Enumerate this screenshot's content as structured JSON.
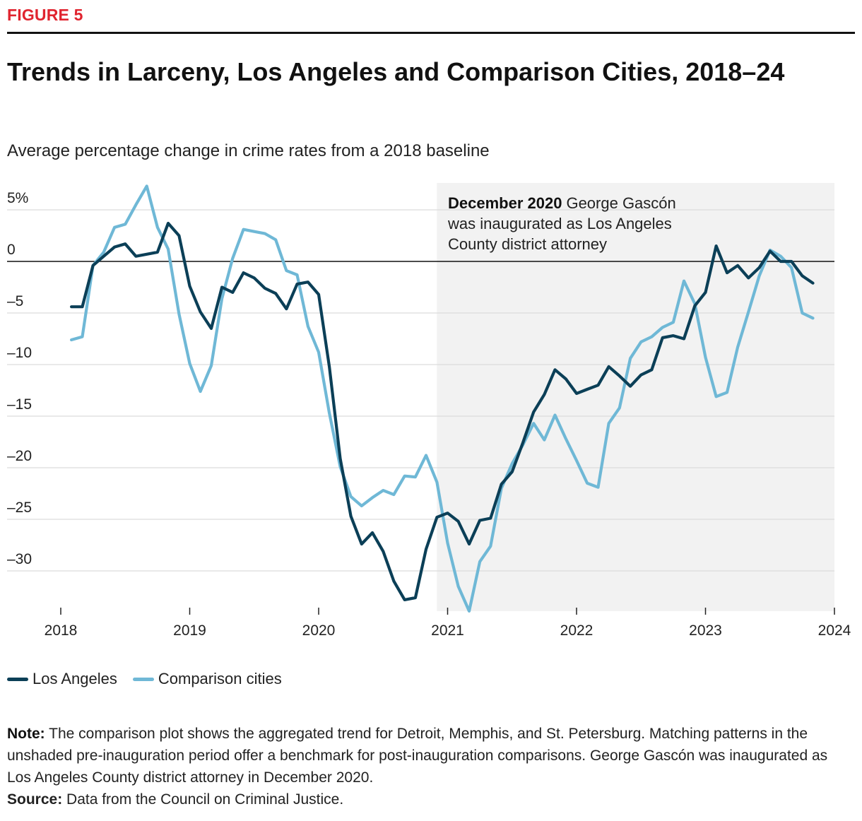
{
  "figure_label": "FIGURE 5",
  "title": "Trends in Larceny, Los Angeles and Comparison Cities, 2018–24",
  "subtitle": "Average percentage change in crime rates from a 2018 baseline",
  "colors": {
    "los_angeles": "#0b3f57",
    "comparison": "#6fb8d6",
    "shade": "#f2f2f2",
    "accent": "#e0242f"
  },
  "legend": [
    "Los Angeles",
    "Comparison cities"
  ],
  "annotation": {
    "bold": "December 2020",
    "lines": [
      "George Gascón",
      "was inaugurated as Los Angeles",
      "County district attorney"
    ]
  },
  "note": {
    "label": "Note:",
    "text": "The comparison plot shows the aggregated trend for Detroit, Memphis, and St. Petersburg. Matching patterns in the unshaded pre-inauguration period offer a benchmark for post-inauguration comparisons. George Gascón was inaugurated as Los Angeles County district attorney in December 2020."
  },
  "source": {
    "label": "Source:",
    "text": "Data from the Council on Criminal Justice."
  },
  "chart_data": {
    "type": "line",
    "title": "Trends in Larceny, Los Angeles and Comparison Cities, 2018–24",
    "ylabel": "Average percentage change in crime rates from a 2018 baseline",
    "xlabel": "",
    "xlim": [
      2018,
      2024
    ],
    "ylim": [
      -33.5,
      7.5
    ],
    "x_ticks": [
      2018,
      2019,
      2020,
      2021,
      2022,
      2023,
      2024
    ],
    "y_ticks": [
      5,
      0,
      -5,
      -10,
      -15,
      -20,
      -25,
      -30
    ],
    "y_tick_labels": [
      "5%",
      "0",
      "–5",
      "–10",
      "–15",
      "–20",
      "–25",
      "–30"
    ],
    "grid": "horizontal",
    "legend_position": "bottom-left",
    "shaded_region": {
      "from": 2020.917,
      "to": 2024
    },
    "x": [
      2018.083,
      2018.167,
      2018.25,
      2018.333,
      2018.417,
      2018.5,
      2018.583,
      2018.667,
      2018.75,
      2018.833,
      2018.917,
      2019.0,
      2019.083,
      2019.167,
      2019.25,
      2019.333,
      2019.417,
      2019.5,
      2019.583,
      2019.667,
      2019.75,
      2019.833,
      2019.917,
      2020.0,
      2020.083,
      2020.167,
      2020.25,
      2020.333,
      2020.417,
      2020.5,
      2020.583,
      2020.667,
      2020.75,
      2020.833,
      2020.917,
      2021.0,
      2021.083,
      2021.167,
      2021.25,
      2021.333,
      2021.417,
      2021.5,
      2021.583,
      2021.667,
      2021.75,
      2021.833,
      2021.917,
      2022.0,
      2022.083,
      2022.167,
      2022.25,
      2022.333,
      2022.417,
      2022.5,
      2022.583,
      2022.667,
      2022.75,
      2022.833,
      2022.917,
      2023.0,
      2023.083,
      2023.167,
      2023.25,
      2023.333,
      2023.417,
      2023.5,
      2023.583,
      2023.667,
      2023.75,
      2023.833
    ],
    "series": [
      {
        "name": "Los Angeles",
        "values": [
          -4.4,
          -4.4,
          -0.4,
          0.5,
          1.4,
          1.7,
          0.5,
          0.7,
          0.9,
          3.7,
          2.5,
          -2.4,
          -4.9,
          -6.5,
          -2.5,
          -3.0,
          -1.1,
          -1.6,
          -2.6,
          -3.1,
          -4.6,
          -2.2,
          -2.0,
          -3.2,
          -10.2,
          -19.1,
          -24.7,
          -27.4,
          -26.3,
          -28.1,
          -31.0,
          -32.8,
          -32.6,
          -27.9,
          -24.8,
          -24.4,
          -25.2,
          -27.4,
          -25.1,
          -24.9,
          -21.6,
          -20.4,
          -17.6,
          -14.6,
          -12.9,
          -10.5,
          -11.4,
          -12.8,
          -12.4,
          -12.0,
          -10.2,
          -11.1,
          -12.1,
          -11.0,
          -10.5,
          -7.4,
          -7.2,
          -7.5,
          -4.3,
          -3.0,
          1.5,
          -1.1,
          -0.4,
          -1.6,
          -0.6,
          1.0,
          0.0,
          0.0,
          -1.4,
          -2.1
        ]
      },
      {
        "name": "Comparison cities",
        "values": [
          -7.6,
          -7.3,
          -0.4,
          0.9,
          3.3,
          3.6,
          5.5,
          7.3,
          3.3,
          1.2,
          -5.1,
          -9.9,
          -12.6,
          -10.1,
          -3.6,
          0.3,
          3.1,
          2.9,
          2.7,
          2.1,
          -0.9,
          -1.3,
          -6.3,
          -8.8,
          -14.7,
          -19.9,
          -22.8,
          -23.7,
          -22.9,
          -22.2,
          -22.6,
          -20.8,
          -20.9,
          -18.8,
          -21.4,
          -27.3,
          -31.5,
          -33.9,
          -29.1,
          -27.6,
          -22.0,
          -19.6,
          -17.8,
          -15.7,
          -17.3,
          -14.9,
          -17.2,
          -19.3,
          -21.5,
          -21.9,
          -15.7,
          -14.2,
          -9.4,
          -7.8,
          -7.3,
          -6.4,
          -5.9,
          -1.9,
          -4.1,
          -9.3,
          -13.1,
          -12.7,
          -8.3,
          -4.9,
          -1.4,
          1.1,
          0.5,
          -0.6,
          -5.0,
          -5.5
        ]
      }
    ]
  }
}
